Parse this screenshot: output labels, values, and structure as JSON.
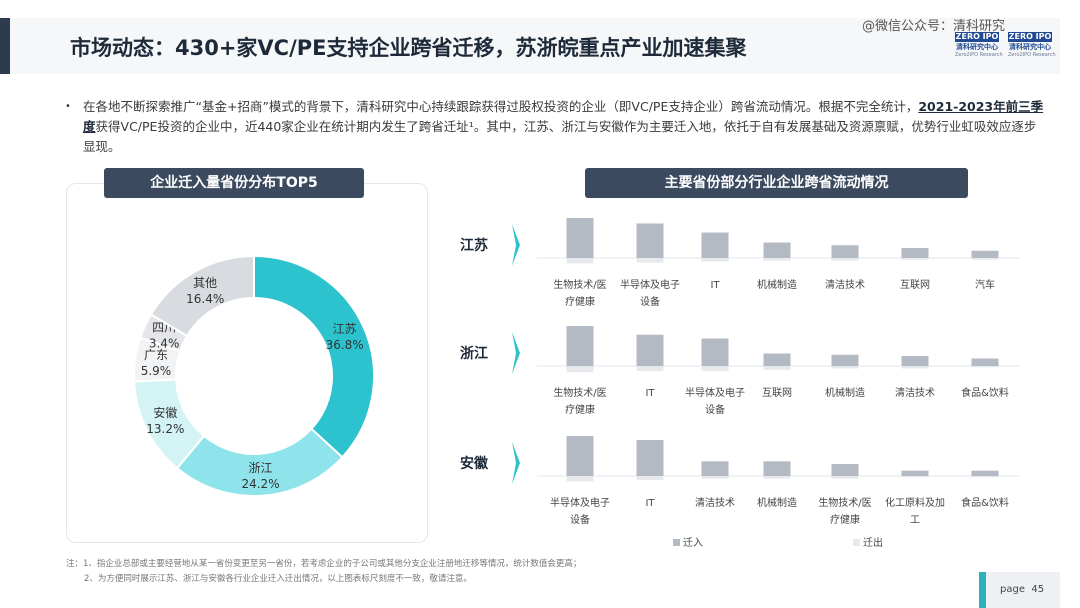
{
  "header": {
    "title": "市场动态：430+家VC/PE支持企业跨省迁移，苏浙皖重点产业加速集聚",
    "watermark": "@微信公众号：清科研究",
    "logo_zero": "ZERO IPO",
    "logo_cn": "清科研究中心",
    "logo_en": "Zero2IPO Research"
  },
  "intro": {
    "bullet": "•",
    "text_before": "在各地不断探索推广“基金+招商”模式的背景下，清科研究中心持续跟踪获得过股权投资的企业（即VC/PE支持企业）跨省流动情况。根据不完全统计，",
    "highlight": "2021-2023年前三季度",
    "text_after": "获得VC/PE投资的企业中，近440家企业在统计期内发生了跨省迁址¹。其中，江苏、浙江与安徽作为主要迁入地，依托于自有发展基础及资源禀赋，优势行业虹吸效应逐步显现。"
  },
  "left_header": "企业迁入量省份分布TOP5",
  "right_header": "主要省份部分行业企业跨省流动情况",
  "chart_data": [
    {
      "type": "pie",
      "title": "企业迁入量省份分布TOP5",
      "slices": [
        {
          "label": "江苏",
          "value": 36.8,
          "display": "36.8%",
          "color": "#2cc3cf"
        },
        {
          "label": "浙江",
          "value": 24.2,
          "display": "24.2%",
          "color": "#8fe3ea"
        },
        {
          "label": "安徽",
          "value": 13.2,
          "display": "13.2%",
          "color": "#d3f3f5"
        },
        {
          "label": "广东",
          "value": 5.9,
          "display": "5.9%",
          "color": "#f2f3f5"
        },
        {
          "label": "四川",
          "value": 3.4,
          "display": "3.4%",
          "color": "#e4e6ea"
        },
        {
          "label": "其他",
          "value": 16.4,
          "display": "16.4%",
          "color": "#d8dbe0"
        }
      ]
    },
    {
      "type": "bar",
      "title": "主要省份部分行业企业跨省流动情况",
      "legend": {
        "in_label": "迁入",
        "out_label": "迁出",
        "in_color": "#b4bac4",
        "out_color": "#e7e9ed"
      },
      "groups": [
        {
          "province": "江苏",
          "categories": [
            "生物技术/医疗健康",
            "半导体及电子设备",
            "IT",
            "机械制造",
            "清洁技术",
            "互联网",
            "汽车"
          ],
          "in": [
            44,
            38,
            28,
            17,
            14,
            11,
            8
          ],
          "out": [
            6,
            5,
            4,
            3,
            3,
            2,
            2
          ]
        },
        {
          "province": "浙江",
          "categories": [
            "生物技术/医疗健康",
            "IT",
            "半导体及电子设备",
            "互联网",
            "机械制造",
            "清洁技术",
            "食品&饮料"
          ],
          "in": [
            32,
            25,
            22,
            10,
            9,
            8,
            6
          ],
          "out": [
            5,
            4,
            4,
            3,
            2,
            2,
            1
          ]
        },
        {
          "province": "安徽",
          "categories": [
            "半导体及电子设备",
            "IT",
            "清洁技术",
            "机械制造",
            "生物技术/医疗健康",
            "化工原料及加工",
            "食品&饮料"
          ],
          "in": [
            30,
            27,
            11,
            11,
            9,
            4,
            4
          ],
          "out": [
            4,
            3,
            2,
            2,
            2,
            1,
            1
          ]
        }
      ]
    }
  ],
  "footnotes": [
    "注：1、指企业总部或主要经营地从某一省份变更至另一省份，若考虑企业的子公司或其他分支企业注册地迁移等情况，统计数值会更高；",
    "2、为方便同时展示江苏、浙江与安徽各行业企业迁入迁出情况，以上图表标尺刻度不一致，敬请注意。"
  ],
  "page": {
    "label": "page",
    "number": "45"
  },
  "colors": {
    "accent": "#2d3b4f",
    "teal": "#2cc3cf"
  }
}
